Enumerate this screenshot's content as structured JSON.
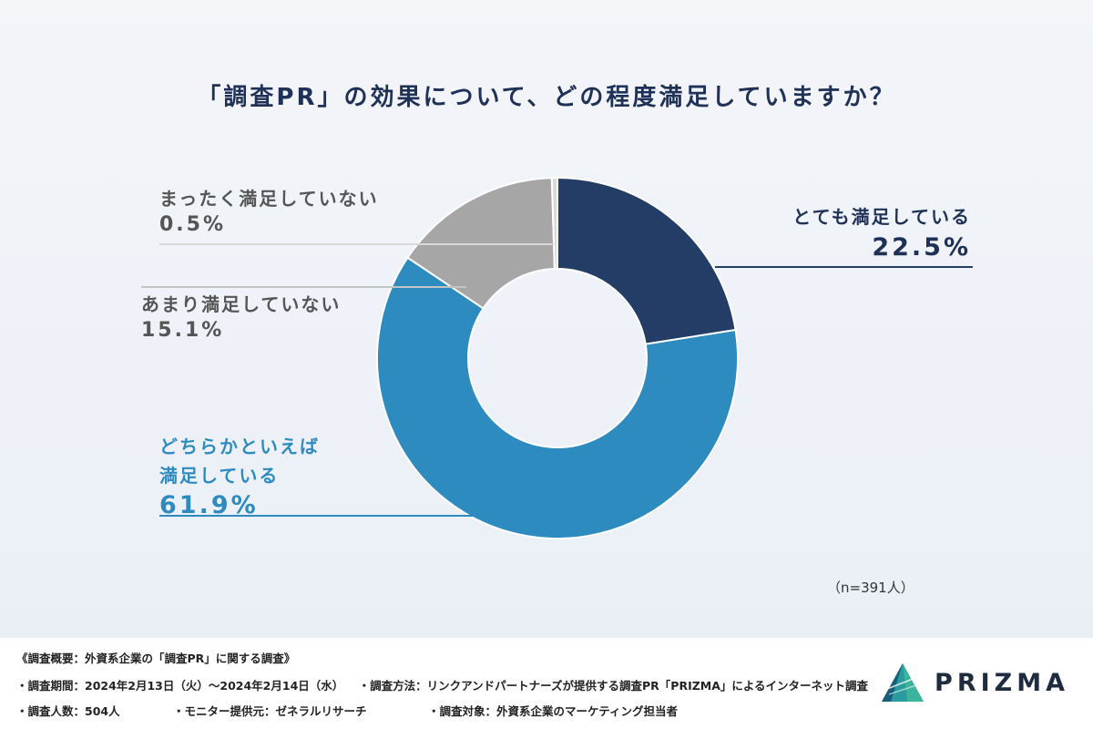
{
  "chart_data": {
    "type": "donut",
    "title": "「調査PR」の効果について、どの程度満足していますか？",
    "sample_size": "（n=391人）",
    "slices": [
      {
        "label": "とても満足している",
        "value": 22.5,
        "display": "22.5%",
        "color": "#233d66"
      },
      {
        "label": "どちらかといえば満足している",
        "value": 61.9,
        "display": "61.9%",
        "color": "#2e8bbf"
      },
      {
        "label": "あまり満足していない",
        "value": 15.1,
        "display": "15.1%",
        "color": "#a6a6a6"
      },
      {
        "label": "まったく満足していない",
        "value": 0.5,
        "display": "0.5%",
        "color": "#d9d9d9"
      }
    ],
    "start_angle_deg": 0,
    "direction": "clockwise"
  },
  "labels": {
    "very": {
      "text": "とても満足している",
      "pct": "22.5%"
    },
    "somewhat": {
      "line1": "どちらかといえば",
      "line2": "満足している",
      "pct": "61.9%"
    },
    "notmuch": {
      "text": "あまり満足していない",
      "pct": "15.1%"
    },
    "notatall": {
      "text": "まったく満足していない",
      "pct": "0.5%"
    }
  },
  "footer": {
    "summary": "《調査概要：外資系企業の「調査PR」に関する調査》",
    "period": "・調査期間：2024年2月13日（火）～2024年2月14日（水）",
    "method": "・調査方法：リンクアンドパートナーズが提供する調査PR「PRIZMA」によるインターネット調査",
    "count": "・調査人数：504人",
    "provider": "・モニター提供元：ゼネラルリサーチ",
    "target": "・調査対象：外資系企業のマーケティング担当者"
  },
  "logo": {
    "text": "PRIZMA",
    "icon": "prizma-prism-icon"
  },
  "colors": {
    "title": "#1f3157",
    "very": "#233d66",
    "somewhat": "#2e8bbf",
    "gray_text": "#555555"
  }
}
